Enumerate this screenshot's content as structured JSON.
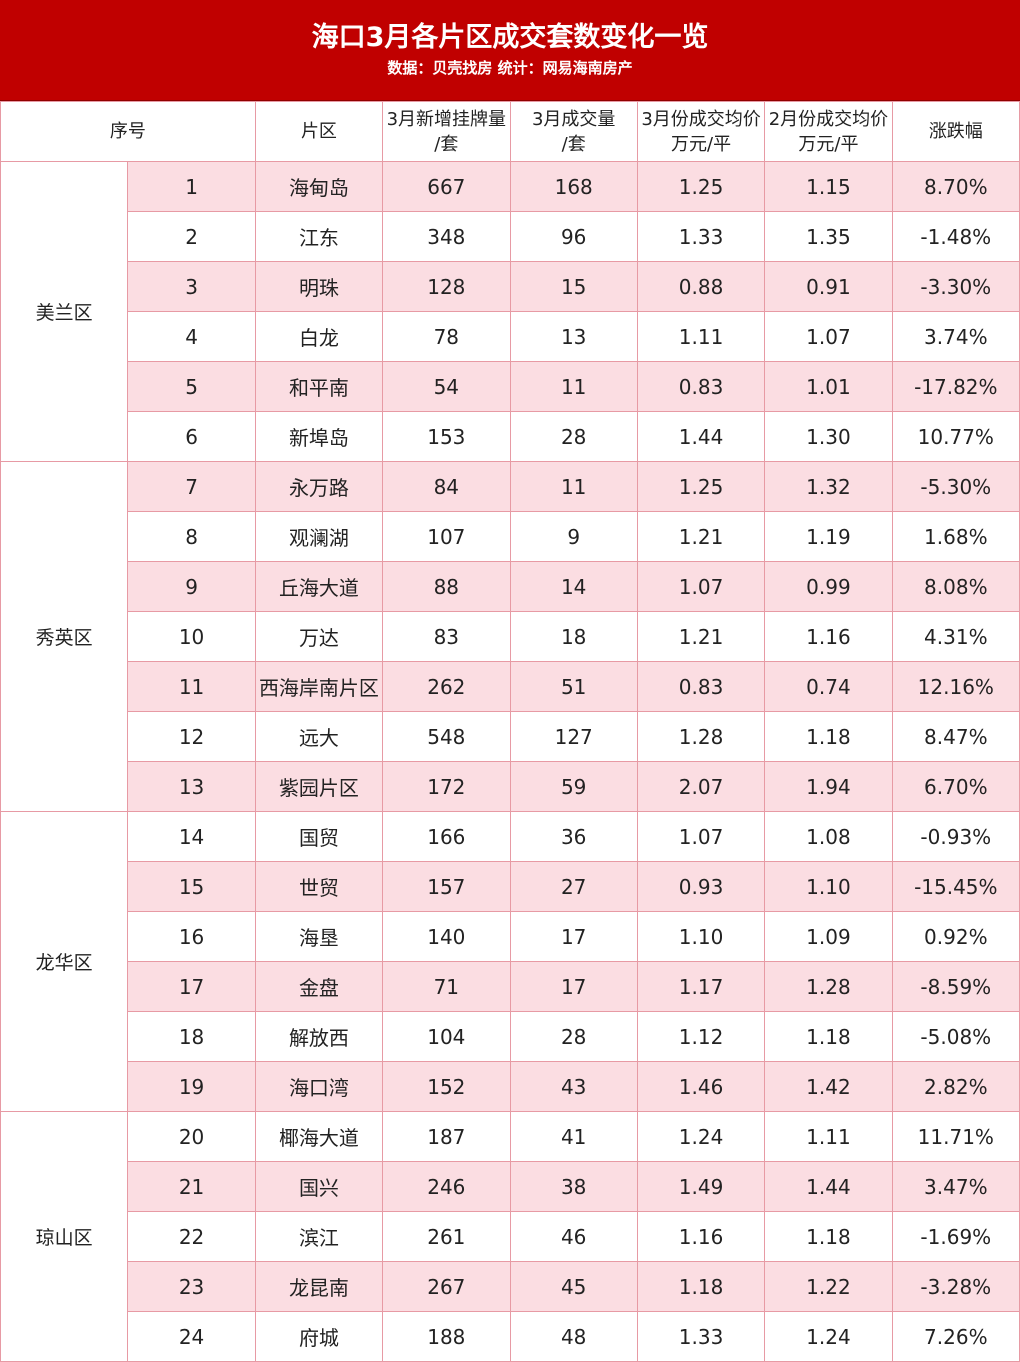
{
  "header": {
    "title": "海口3月各片区成交套数变化一览",
    "source": "数据：贝壳找房   统计：网易海南房产"
  },
  "columns": [
    {
      "line1": "序号",
      "line2": ""
    },
    {
      "line1": "片区",
      "line2": ""
    },
    {
      "line1": "3月新增挂牌量",
      "line2": "/套"
    },
    {
      "line1": "3月成交量",
      "line2": "/套"
    },
    {
      "line1": "3月份成交均价",
      "line2": "万元/平"
    },
    {
      "line1": "2月份成交均价",
      "line2": "万元/平"
    },
    {
      "line1": "涨跌幅",
      "line2": ""
    }
  ],
  "groups": [
    {
      "district": "美兰区",
      "rows": [
        {
          "no": "1",
          "area": "海甸岛",
          "listings": "667",
          "deals": "168",
          "mar_price": "1.25",
          "feb_price": "1.15",
          "change": "8.70%"
        },
        {
          "no": "2",
          "area": "江东",
          "listings": "348",
          "deals": "96",
          "mar_price": "1.33",
          "feb_price": "1.35",
          "change": "-1.48%"
        },
        {
          "no": "3",
          "area": "明珠",
          "listings": "128",
          "deals": "15",
          "mar_price": "0.88",
          "feb_price": "0.91",
          "change": "-3.30%"
        },
        {
          "no": "4",
          "area": "白龙",
          "listings": "78",
          "deals": "13",
          "mar_price": "1.11",
          "feb_price": "1.07",
          "change": "3.74%"
        },
        {
          "no": "5",
          "area": "和平南",
          "listings": "54",
          "deals": "11",
          "mar_price": "0.83",
          "feb_price": "1.01",
          "change": "-17.82%"
        },
        {
          "no": "6",
          "area": "新埠岛",
          "listings": "153",
          "deals": "28",
          "mar_price": "1.44",
          "feb_price": "1.30",
          "change": "10.77%"
        }
      ]
    },
    {
      "district": "秀英区",
      "rows": [
        {
          "no": "7",
          "area": "永万路",
          "listings": "84",
          "deals": "11",
          "mar_price": "1.25",
          "feb_price": "1.32",
          "change": "-5.30%"
        },
        {
          "no": "8",
          "area": "观澜湖",
          "listings": "107",
          "deals": "9",
          "mar_price": "1.21",
          "feb_price": "1.19",
          "change": "1.68%"
        },
        {
          "no": "9",
          "area": "丘海大道",
          "listings": "88",
          "deals": "14",
          "mar_price": "1.07",
          "feb_price": "0.99",
          "change": "8.08%"
        },
        {
          "no": "10",
          "area": "万达",
          "listings": "83",
          "deals": "18",
          "mar_price": "1.21",
          "feb_price": "1.16",
          "change": "4.31%"
        },
        {
          "no": "11",
          "area": "西海岸南片区",
          "listings": "262",
          "deals": "51",
          "mar_price": "0.83",
          "feb_price": "0.74",
          "change": "12.16%"
        },
        {
          "no": "12",
          "area": "远大",
          "listings": "548",
          "deals": "127",
          "mar_price": "1.28",
          "feb_price": "1.18",
          "change": "8.47%"
        },
        {
          "no": "13",
          "area": "紫园片区",
          "listings": "172",
          "deals": "59",
          "mar_price": "2.07",
          "feb_price": "1.94",
          "change": "6.70%"
        }
      ]
    },
    {
      "district": "龙华区",
      "rows": [
        {
          "no": "14",
          "area": "国贸",
          "listings": "166",
          "deals": "36",
          "mar_price": "1.07",
          "feb_price": "1.08",
          "change": "-0.93%"
        },
        {
          "no": "15",
          "area": "世贸",
          "listings": "157",
          "deals": "27",
          "mar_price": "0.93",
          "feb_price": "1.10",
          "change": "-15.45%"
        },
        {
          "no": "16",
          "area": "海垦",
          "listings": "140",
          "deals": "17",
          "mar_price": "1.10",
          "feb_price": "1.09",
          "change": "0.92%"
        },
        {
          "no": "17",
          "area": "金盘",
          "listings": "71",
          "deals": "17",
          "mar_price": "1.17",
          "feb_price": "1.28",
          "change": "-8.59%"
        },
        {
          "no": "18",
          "area": "解放西",
          "listings": "104",
          "deals": "28",
          "mar_price": "1.12",
          "feb_price": "1.18",
          "change": "-5.08%"
        },
        {
          "no": "19",
          "area": "海口湾",
          "listings": "152",
          "deals": "43",
          "mar_price": "1.46",
          "feb_price": "1.42",
          "change": "2.82%"
        }
      ]
    },
    {
      "district": "琼山区",
      "rows": [
        {
          "no": "20",
          "area": "椰海大道",
          "listings": "187",
          "deals": "41",
          "mar_price": "1.24",
          "feb_price": "1.11",
          "change": "11.71%"
        },
        {
          "no": "21",
          "area": "国兴",
          "listings": "246",
          "deals": "38",
          "mar_price": "1.49",
          "feb_price": "1.44",
          "change": "3.47%"
        },
        {
          "no": "22",
          "area": "滨江",
          "listings": "261",
          "deals": "46",
          "mar_price": "1.16",
          "feb_price": "1.18",
          "change": "-1.69%"
        },
        {
          "no": "23",
          "area": "龙昆南",
          "listings": "267",
          "deals": "45",
          "mar_price": "1.18",
          "feb_price": "1.22",
          "change": "-3.28%"
        },
        {
          "no": "24",
          "area": "府城",
          "listings": "188",
          "deals": "48",
          "mar_price": "1.33",
          "feb_price": "1.24",
          "change": "7.26%"
        }
      ]
    }
  ],
  "colors": {
    "header_bg": "#c00000",
    "stripe": "#fbdde2",
    "border": "#e79aa4"
  }
}
